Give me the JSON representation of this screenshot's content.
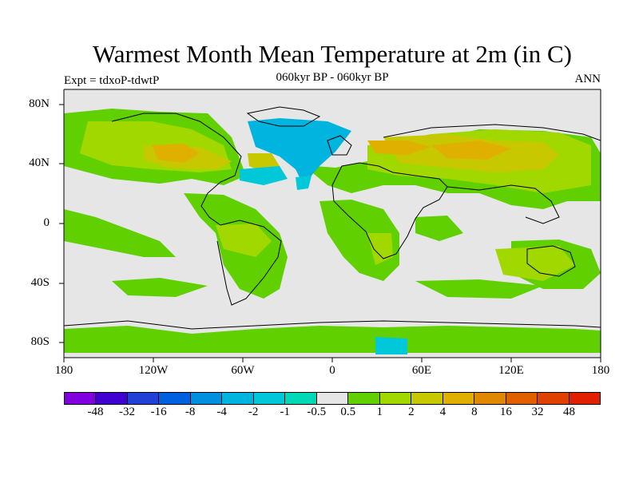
{
  "title": "Warmest Month Mean Temperature at 2m (in C)",
  "subtitle": "060kyr BP - 060kyr BP",
  "left_label": "Expt = tdxoP-tdwtP",
  "right_label": "ANN",
  "map": {
    "projection": "cylindrical equidistant",
    "lon_range": [
      -180,
      180
    ],
    "lat_range": [
      -90,
      90
    ],
    "background_color": "#e6e6e6",
    "coastline_color": "#000000",
    "y_ticks": [
      "80N",
      "40N",
      "0",
      "40S",
      "80S"
    ],
    "x_ticks": [
      "180",
      "120W",
      "60W",
      "0",
      "60E",
      "120E",
      "180"
    ]
  },
  "colorbar": {
    "colors": [
      "#8000e0",
      "#4000d0",
      "#2040d8",
      "#0060e0",
      "#0090e0",
      "#00b4e0",
      "#00c8d8",
      "#00d8b8",
      "#e6e6e6",
      "#60d000",
      "#a0d800",
      "#c8c800",
      "#e0b000",
      "#e08800",
      "#e06000",
      "#e04000",
      "#e02000"
    ],
    "labels": [
      "-48",
      "-32",
      "-16",
      "-8",
      "-4",
      "-2",
      "-1",
      "-0.5",
      "0.5",
      "1",
      "2",
      "4",
      "8",
      "16",
      "32",
      "48"
    ]
  }
}
